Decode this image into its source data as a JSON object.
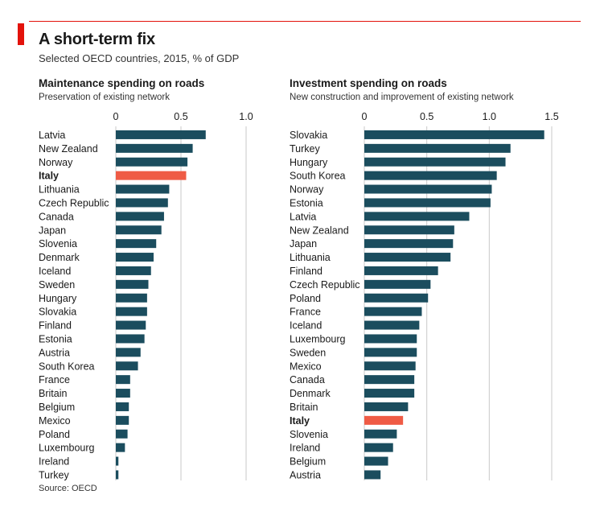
{
  "header": {
    "title": "A short-term fix",
    "subtitle": "Selected OECD countries, 2015, % of GDP"
  },
  "colors": {
    "bar": "#1b4d5e",
    "highlight": "#ef5b45",
    "grid": "#c9c9c9",
    "accent": "#e3120b"
  },
  "source": "Source: OECD",
  "chart_data": [
    {
      "type": "bar",
      "orientation": "horizontal",
      "title": "Maintenance spending on roads",
      "subtitle": "Preservation of existing network",
      "xlim": [
        0,
        1.0
      ],
      "ticks": [
        0,
        0.5,
        1.0
      ],
      "tick_labels": [
        "0",
        "0.5",
        "1.0"
      ],
      "highlight": "Italy",
      "categories": [
        "Latvia",
        "New Zealand",
        "Norway",
        "Italy",
        "Lithuania",
        "Czech Republic",
        "Canada",
        "Japan",
        "Slovenia",
        "Denmark",
        "Iceland",
        "Sweden",
        "Hungary",
        "Slovakia",
        "Finland",
        "Estonia",
        "Austria",
        "South Korea",
        "France",
        "Britain",
        "Belgium",
        "Mexico",
        "Poland",
        "Luxembourg",
        "Ireland",
        "Turkey"
      ],
      "values": [
        0.69,
        0.59,
        0.55,
        0.54,
        0.41,
        0.4,
        0.37,
        0.35,
        0.31,
        0.29,
        0.27,
        0.25,
        0.24,
        0.24,
        0.23,
        0.22,
        0.19,
        0.17,
        0.11,
        0.11,
        0.1,
        0.1,
        0.09,
        0.07,
        0.02,
        0.02
      ]
    },
    {
      "type": "bar",
      "orientation": "horizontal",
      "title": "Investment spending on roads",
      "subtitle": "New construction and improvement of existing network",
      "xlim": [
        0,
        1.5
      ],
      "ticks": [
        0,
        0.5,
        1.0,
        1.5
      ],
      "tick_labels": [
        "0",
        "0.5",
        "1.0",
        "1.5"
      ],
      "highlight": "Italy",
      "categories": [
        "Slovakia",
        "Turkey",
        "Hungary",
        "South Korea",
        "Norway",
        "Estonia",
        "Latvia",
        "New Zealand",
        "Japan",
        "Lithuania",
        "Finland",
        "Czech Republic",
        "Poland",
        "France",
        "Iceland",
        "Luxembourg",
        "Sweden",
        "Mexico",
        "Canada",
        "Denmark",
        "Britain",
        "Italy",
        "Slovenia",
        "Ireland",
        "Belgium",
        "Austria"
      ],
      "values": [
        1.44,
        1.17,
        1.13,
        1.06,
        1.02,
        1.01,
        0.84,
        0.72,
        0.71,
        0.69,
        0.59,
        0.53,
        0.51,
        0.46,
        0.44,
        0.42,
        0.42,
        0.41,
        0.4,
        0.4,
        0.35,
        0.31,
        0.26,
        0.23,
        0.19,
        0.13
      ]
    }
  ]
}
